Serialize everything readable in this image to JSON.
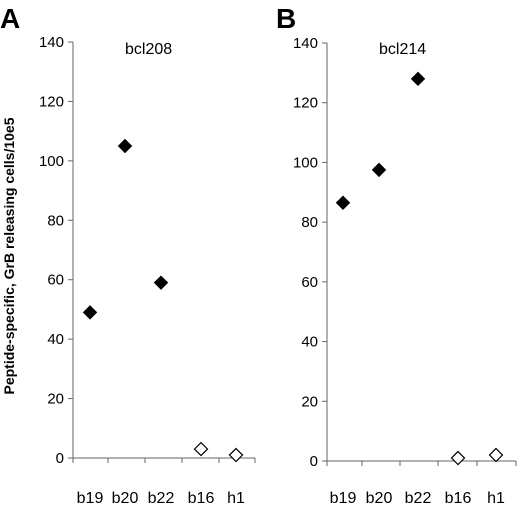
{
  "ylabel": "Peptide-specific, GrB releasing cells/10e5",
  "chart_data": [
    {
      "type": "scatter",
      "panel": "A",
      "title": "bcl208",
      "categories": [
        "b19",
        "b20",
        "b22",
        "b16",
        "h1"
      ],
      "values": [
        49,
        105,
        59,
        3,
        1
      ],
      "marker_fill": [
        "filled",
        "filled",
        "filled",
        "open",
        "open"
      ],
      "yticks": [
        0,
        20,
        40,
        60,
        80,
        100,
        120,
        140
      ],
      "ylim": [
        0,
        140
      ],
      "grid": false
    },
    {
      "type": "scatter",
      "panel": "B",
      "title": "bcl214",
      "categories": [
        "b19",
        "b20",
        "b22",
        "b16",
        "h1"
      ],
      "values": [
        86.5,
        97.5,
        128,
        1,
        2
      ],
      "marker_fill": [
        "filled",
        "filled",
        "filled",
        "open",
        "open"
      ],
      "yticks": [
        0,
        20,
        40,
        60,
        80,
        100,
        120,
        140
      ],
      "ylim": [
        0,
        140
      ],
      "grid": false
    }
  ],
  "colors": {
    "marker": "#000000",
    "axis": "#666666"
  }
}
